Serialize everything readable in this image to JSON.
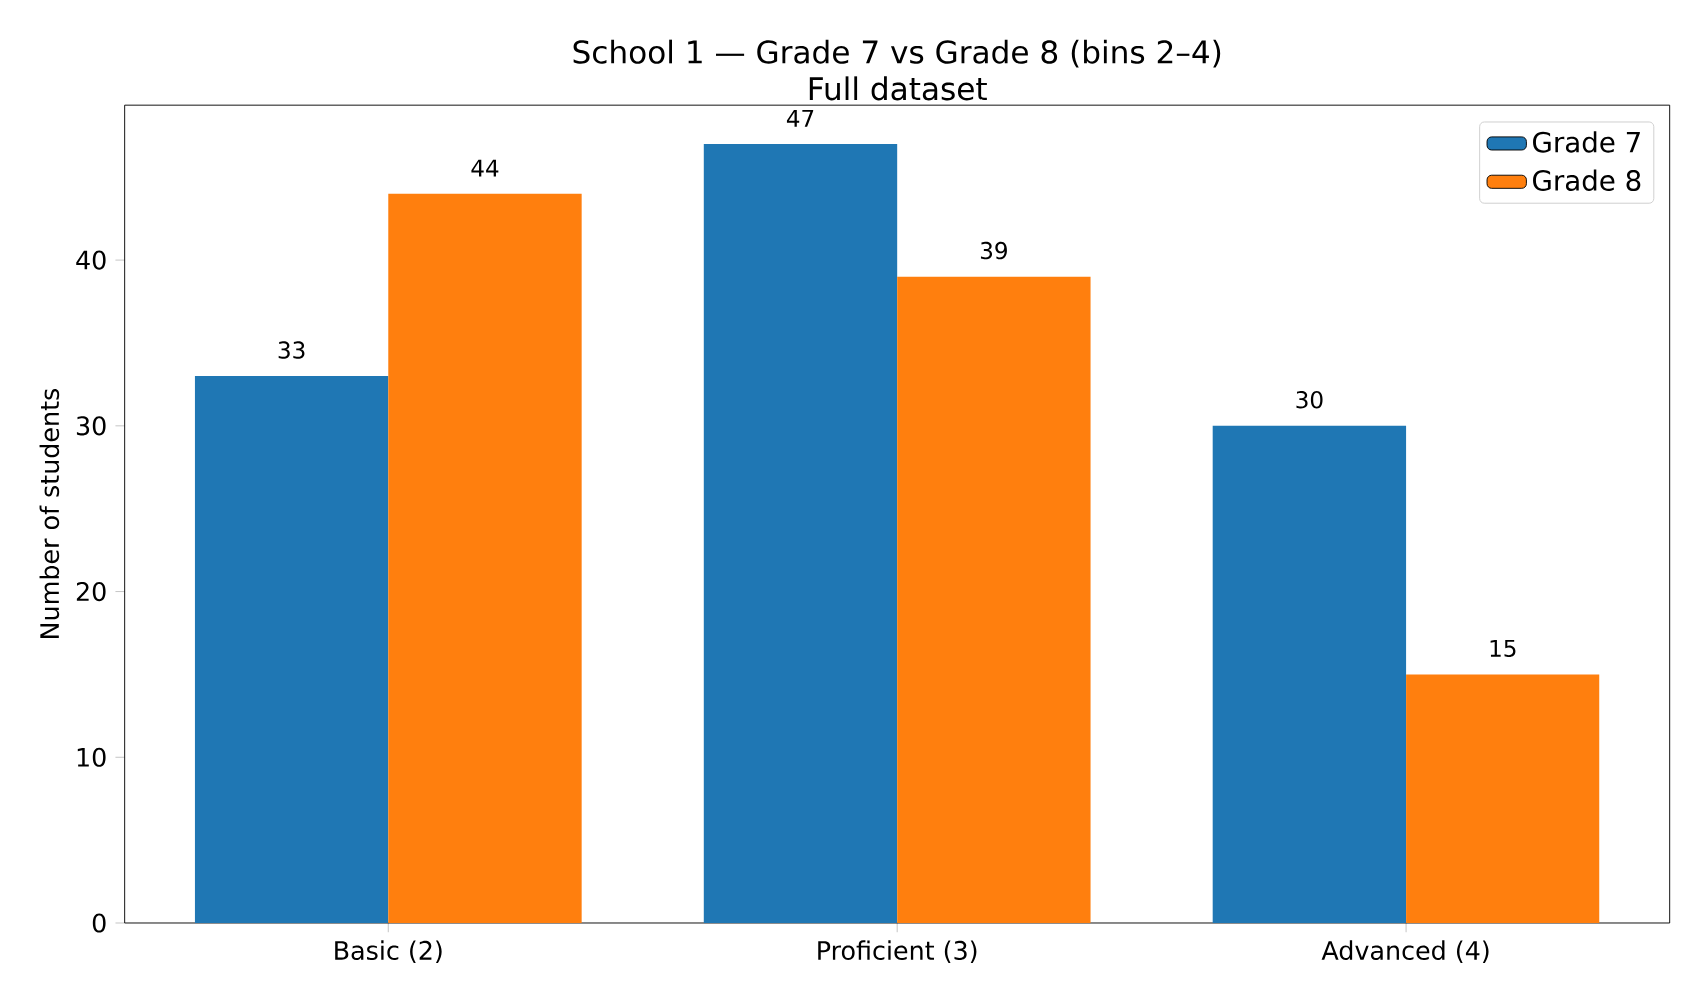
{
  "chart_data": {
    "type": "bar",
    "title": "School 1 — Grade 7 vs Grade 8 (bins 2–4)",
    "subtitle": "Full dataset",
    "ylabel": "Number of students",
    "categories": [
      "Basic (2)",
      "Proficient (3)",
      "Advanced (4)"
    ],
    "series": [
      {
        "name": "Grade 7",
        "color": "#1f77b4",
        "values": [
          33,
          47,
          30
        ]
      },
      {
        "name": "Grade 8",
        "color": "#ff7f0e",
        "values": [
          44,
          39,
          15
        ]
      }
    ],
    "ylim": [
      0,
      49.35
    ],
    "yticks": [
      0,
      10,
      20,
      30,
      40
    ],
    "data_labels": true,
    "legend": "top right",
    "grid": false
  }
}
